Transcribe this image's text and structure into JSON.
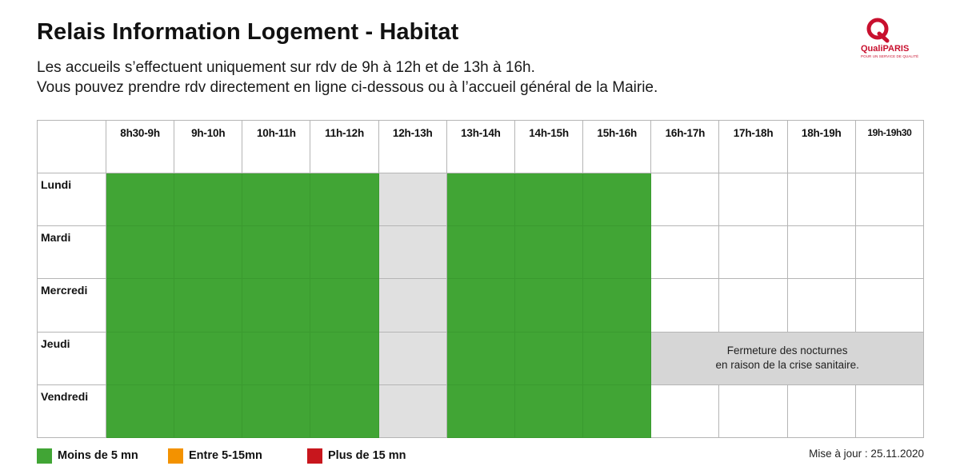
{
  "header": {
    "title": "Relais Information Logement - Habitat",
    "subtitle_line1": "Les accueils s’effectuent uniquement sur rdv de 9h à 12h et de 13h à 16h.",
    "subtitle_line2": "Vous pouvez prendre rdv directement en ligne ci-dessous ou à l’accueil général de la Mairie."
  },
  "logo": {
    "name": "QualiPARIS",
    "tagline": "POUR UN SERVICE DE QUALITÉ",
    "color": "#c8102e"
  },
  "schedule": {
    "time_slots": [
      "8h30-9h",
      "9h-10h",
      "10h-11h",
      "11h-12h",
      "12h-13h",
      "13h-14h",
      "14h-15h",
      "15h-16h",
      "16h-17h",
      "17h-18h",
      "18h-19h",
      "19h-19h30"
    ],
    "days": [
      "Lundi",
      "Mardi",
      "Mercredi",
      "Jeudi",
      "Vendredi"
    ],
    "closure_note_line1": "Fermeture des nocturnes",
    "closure_note_line2": "en raison de la crise sanitaire."
  },
  "legend": {
    "items": [
      {
        "label": "Moins de 5 mn",
        "color": "#41a535"
      },
      {
        "label": "Entre 5-15mn",
        "color": "#f39200"
      },
      {
        "label": "Plus de 15 mn",
        "color": "#c8161d"
      }
    ]
  },
  "footer": {
    "update": "Mise à jour : 25.11.2020"
  },
  "colors": {
    "open": "#41a535",
    "lunch": "#e0e0e0",
    "closed": "#d6d6d6"
  }
}
